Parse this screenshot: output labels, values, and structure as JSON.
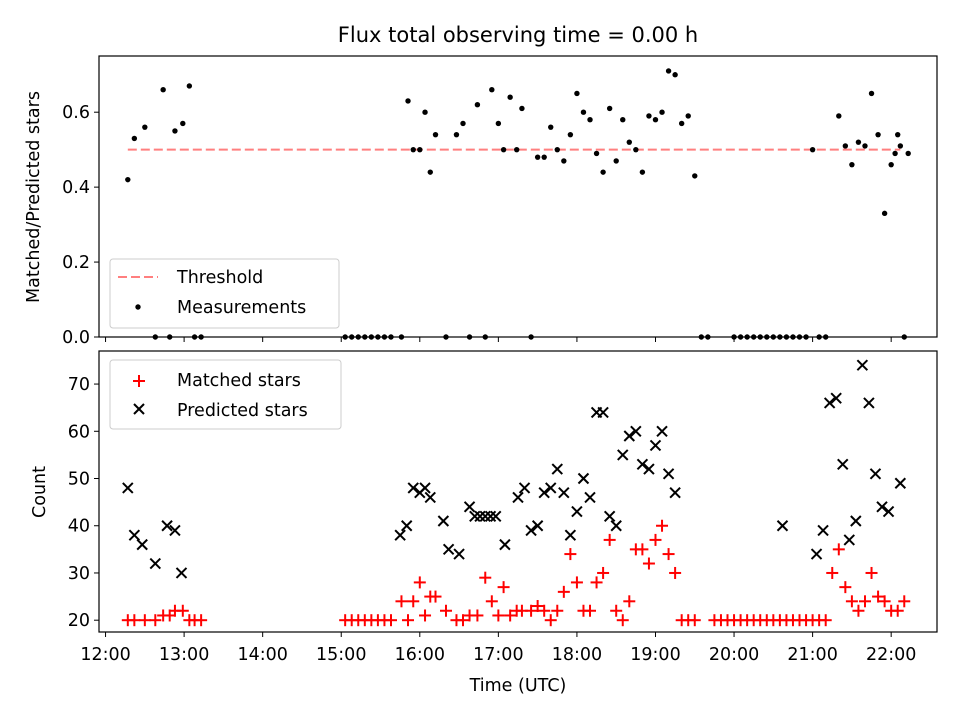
{
  "chart_data": [
    {
      "type": "scatter",
      "title": "Flux total observing time = 0.00 h",
      "xlabel": "",
      "ylabel": "Matched/Predicted stars",
      "xlim": [
        "11:55",
        "22:35"
      ],
      "ylim": [
        0,
        0.75
      ],
      "yticks": [
        "0.0",
        "0.2",
        "0.4",
        "0.6"
      ],
      "ytick_values": [
        0,
        0.2,
        0.4,
        0.6
      ],
      "grid": false,
      "legend": {
        "placement": "lower-left"
      },
      "series": [
        {
          "name": "Threshold",
          "type": "line",
          "style": "dashed",
          "color": "#ff7f7f",
          "points": [
            [
              "12:17",
              0.5
            ],
            [
              "22:07",
              0.5
            ]
          ]
        },
        {
          "name": "Measurements",
          "type": "scatter",
          "color": "#000000",
          "points": [
            [
              "12:17",
              0.42
            ],
            [
              "12:22",
              0.53
            ],
            [
              "12:30",
              0.56
            ],
            [
              "12:38",
              0
            ],
            [
              "12:44",
              0.66
            ],
            [
              "12:49",
              0
            ],
            [
              "12:53",
              0.55
            ],
            [
              "12:59",
              0.57
            ],
            [
              "13:04",
              0.67
            ],
            [
              "13:08",
              0
            ],
            [
              "13:13",
              0
            ],
            [
              "15:03",
              0
            ],
            [
              "15:08",
              0
            ],
            [
              "15:13",
              0
            ],
            [
              "15:18",
              0
            ],
            [
              "15:23",
              0
            ],
            [
              "15:28",
              0
            ],
            [
              "15:33",
              0
            ],
            [
              "15:38",
              0
            ],
            [
              "15:46",
              0
            ],
            [
              "15:51",
              0.63
            ],
            [
              "15:55",
              0.5
            ],
            [
              "16:00",
              0.5
            ],
            [
              "16:04",
              0.6
            ],
            [
              "16:08",
              0.44
            ],
            [
              "16:12",
              0.54
            ],
            [
              "16:20",
              0
            ],
            [
              "16:28",
              0.54
            ],
            [
              "16:33",
              0.57
            ],
            [
              "16:38",
              0
            ],
            [
              "16:44",
              0.62
            ],
            [
              "16:50",
              0
            ],
            [
              "16:55",
              0.66
            ],
            [
              "17:00",
              0.57
            ],
            [
              "17:04",
              0.5
            ],
            [
              "17:09",
              0.64
            ],
            [
              "17:14",
              0.5
            ],
            [
              "17:18",
              0.61
            ],
            [
              "17:25",
              0
            ],
            [
              "17:30",
              0.48
            ],
            [
              "17:35",
              0.48
            ],
            [
              "17:40",
              0.56
            ],
            [
              "17:45",
              0.5
            ],
            [
              "17:50",
              0.47
            ],
            [
              "17:55",
              0.54
            ],
            [
              "18:00",
              0.65
            ],
            [
              "18:05",
              0.6
            ],
            [
              "18:10",
              0.58
            ],
            [
              "18:15",
              0.49
            ],
            [
              "18:20",
              0.44
            ],
            [
              "18:25",
              0.61
            ],
            [
              "18:30",
              0.47
            ],
            [
              "18:35",
              0.58
            ],
            [
              "18:40",
              0.52
            ],
            [
              "18:45",
              0.5
            ],
            [
              "18:50",
              0.44
            ],
            [
              "18:55",
              0.59
            ],
            [
              "19:00",
              0.58
            ],
            [
              "19:05",
              0.6
            ],
            [
              "19:10",
              0.71
            ],
            [
              "19:15",
              0.7
            ],
            [
              "19:20",
              0.57
            ],
            [
              "19:25",
              0.59
            ],
            [
              "19:30",
              0.43
            ],
            [
              "19:35",
              0
            ],
            [
              "19:40",
              0
            ],
            [
              "20:00",
              0
            ],
            [
              "20:05",
              0
            ],
            [
              "20:10",
              0
            ],
            [
              "20:15",
              0
            ],
            [
              "20:20",
              0
            ],
            [
              "20:25",
              0
            ],
            [
              "20:30",
              0
            ],
            [
              "20:35",
              0
            ],
            [
              "20:40",
              0
            ],
            [
              "20:45",
              0
            ],
            [
              "20:50",
              0
            ],
            [
              "20:55",
              0
            ],
            [
              "21:00",
              0.5
            ],
            [
              "21:05",
              0
            ],
            [
              "21:10",
              0
            ],
            [
              "21:20",
              0.59
            ],
            [
              "21:25",
              0.51
            ],
            [
              "21:30",
              0.46
            ],
            [
              "21:35",
              0.52
            ],
            [
              "21:40",
              0.51
            ],
            [
              "21:45",
              0.65
            ],
            [
              "21:50",
              0.54
            ],
            [
              "21:55",
              0.33
            ],
            [
              "22:00",
              0.46
            ],
            [
              "22:03",
              0.49
            ],
            [
              "22:05",
              0.54
            ],
            [
              "22:07",
              0.51
            ],
            [
              "22:10",
              0
            ],
            [
              "22:13",
              0.49
            ]
          ]
        }
      ]
    },
    {
      "type": "scatter",
      "title": "",
      "xlabel": "Time (UTC)",
      "ylabel": "Count",
      "xlim": [
        "11:55",
        "22:35"
      ],
      "ylim": [
        17.5,
        77
      ],
      "xticks": [
        "12:00",
        "13:00",
        "14:00",
        "15:00",
        "16:00",
        "17:00",
        "18:00",
        "19:00",
        "20:00",
        "21:00",
        "22:00"
      ],
      "yticks": [
        "20",
        "30",
        "40",
        "50",
        "60",
        "70"
      ],
      "ytick_values": [
        20,
        30,
        40,
        50,
        60,
        70
      ],
      "grid": false,
      "legend": {
        "placement": "upper-left"
      },
      "series": [
        {
          "name": "Matched stars",
          "marker": "plus",
          "color": "#ff0000",
          "points": [
            [
              "12:17",
              20
            ],
            [
              "12:22",
              20
            ],
            [
              "12:30",
              20
            ],
            [
              "12:38",
              20
            ],
            [
              "12:44",
              21
            ],
            [
              "12:49",
              21
            ],
            [
              "12:53",
              22
            ],
            [
              "12:59",
              22
            ],
            [
              "13:04",
              20
            ],
            [
              "13:08",
              20
            ],
            [
              "13:13",
              20
            ],
            [
              "15:03",
              20
            ],
            [
              "15:08",
              20
            ],
            [
              "15:13",
              20
            ],
            [
              "15:18",
              20
            ],
            [
              "15:23",
              20
            ],
            [
              "15:28",
              20
            ],
            [
              "15:33",
              20
            ],
            [
              "15:38",
              20
            ],
            [
              "15:46",
              24
            ],
            [
              "15:51",
              20
            ],
            [
              "15:55",
              24
            ],
            [
              "16:00",
              28
            ],
            [
              "16:04",
              21
            ],
            [
              "16:08",
              25
            ],
            [
              "16:12",
              25
            ],
            [
              "16:20",
              22
            ],
            [
              "16:28",
              20
            ],
            [
              "16:33",
              20
            ],
            [
              "16:38",
              21
            ],
            [
              "16:44",
              21
            ],
            [
              "16:50",
              29
            ],
            [
              "16:55",
              24
            ],
            [
              "17:00",
              21
            ],
            [
              "17:04",
              27
            ],
            [
              "17:09",
              21
            ],
            [
              "17:14",
              22
            ],
            [
              "17:18",
              22
            ],
            [
              "17:25",
              22
            ],
            [
              "17:30",
              23
            ],
            [
              "17:35",
              22
            ],
            [
              "17:40",
              20
            ],
            [
              "17:45",
              22
            ],
            [
              "17:50",
              26
            ],
            [
              "17:55",
              34
            ],
            [
              "18:00",
              28
            ],
            [
              "18:05",
              22
            ],
            [
              "18:10",
              22
            ],
            [
              "18:15",
              28
            ],
            [
              "18:20",
              30
            ],
            [
              "18:25",
              37
            ],
            [
              "18:30",
              22
            ],
            [
              "18:35",
              20
            ],
            [
              "18:40",
              24
            ],
            [
              "18:45",
              35
            ],
            [
              "18:50",
              35
            ],
            [
              "18:55",
              32
            ],
            [
              "19:00",
              37
            ],
            [
              "19:05",
              40
            ],
            [
              "19:10",
              34
            ],
            [
              "19:15",
              30
            ],
            [
              "19:20",
              20
            ],
            [
              "19:25",
              20
            ],
            [
              "19:30",
              20
            ],
            [
              "19:45",
              20
            ],
            [
              "19:50",
              20
            ],
            [
              "19:55",
              20
            ],
            [
              "20:00",
              20
            ],
            [
              "20:05",
              20
            ],
            [
              "20:10",
              20
            ],
            [
              "20:15",
              20
            ],
            [
              "20:20",
              20
            ],
            [
              "20:25",
              20
            ],
            [
              "20:30",
              20
            ],
            [
              "20:35",
              20
            ],
            [
              "20:40",
              20
            ],
            [
              "20:45",
              20
            ],
            [
              "20:50",
              20
            ],
            [
              "20:55",
              20
            ],
            [
              "21:00",
              20
            ],
            [
              "21:05",
              20
            ],
            [
              "21:10",
              20
            ],
            [
              "21:15",
              30
            ],
            [
              "21:20",
              35
            ],
            [
              "21:25",
              27
            ],
            [
              "21:30",
              24
            ],
            [
              "21:35",
              22
            ],
            [
              "21:40",
              24
            ],
            [
              "21:45",
              30
            ],
            [
              "21:50",
              25
            ],
            [
              "21:55",
              24
            ],
            [
              "22:00",
              22
            ],
            [
              "22:05",
              22
            ],
            [
              "22:10",
              24
            ]
          ]
        },
        {
          "name": "Predicted stars",
          "marker": "x",
          "color": "#000000",
          "points": [
            [
              "12:17",
              48
            ],
            [
              "12:22",
              38
            ],
            [
              "12:28",
              36
            ],
            [
              "12:38",
              32
            ],
            [
              "12:47",
              40
            ],
            [
              "12:53",
              39
            ],
            [
              "12:58",
              30
            ],
            [
              "15:45",
              38
            ],
            [
              "15:50",
              40
            ],
            [
              "15:55",
              48
            ],
            [
              "16:00",
              47
            ],
            [
              "16:04",
              48
            ],
            [
              "16:08",
              46
            ],
            [
              "16:18",
              41
            ],
            [
              "16:22",
              35
            ],
            [
              "16:30",
              34
            ],
            [
              "16:38",
              44
            ],
            [
              "16:42",
              42
            ],
            [
              "16:46",
              42
            ],
            [
              "16:50",
              42
            ],
            [
              "16:54",
              42
            ],
            [
              "16:58",
              42
            ],
            [
              "17:05",
              36
            ],
            [
              "17:15",
              46
            ],
            [
              "17:20",
              48
            ],
            [
              "17:25",
              39
            ],
            [
              "17:30",
              40
            ],
            [
              "17:35",
              47
            ],
            [
              "17:40",
              48
            ],
            [
              "17:45",
              52
            ],
            [
              "17:50",
              47
            ],
            [
              "17:55",
              38
            ],
            [
              "18:00",
              43
            ],
            [
              "18:05",
              50
            ],
            [
              "18:10",
              46
            ],
            [
              "18:15",
              64
            ],
            [
              "18:20",
              64
            ],
            [
              "18:25",
              42
            ],
            [
              "18:30",
              40
            ],
            [
              "18:35",
              55
            ],
            [
              "18:40",
              59
            ],
            [
              "18:45",
              60
            ],
            [
              "18:50",
              53
            ],
            [
              "18:55",
              52
            ],
            [
              "19:00",
              57
            ],
            [
              "19:05",
              60
            ],
            [
              "19:10",
              51
            ],
            [
              "19:15",
              47
            ],
            [
              "20:37",
              40
            ],
            [
              "21:03",
              34
            ],
            [
              "21:08",
              39
            ],
            [
              "21:13",
              66
            ],
            [
              "21:18",
              67
            ],
            [
              "21:23",
              53
            ],
            [
              "21:28",
              37
            ],
            [
              "21:33",
              41
            ],
            [
              "21:38",
              74
            ],
            [
              "21:43",
              66
            ],
            [
              "21:48",
              51
            ],
            [
              "21:53",
              44
            ],
            [
              "21:58",
              43
            ],
            [
              "22:07",
              49
            ]
          ]
        }
      ]
    }
  ]
}
